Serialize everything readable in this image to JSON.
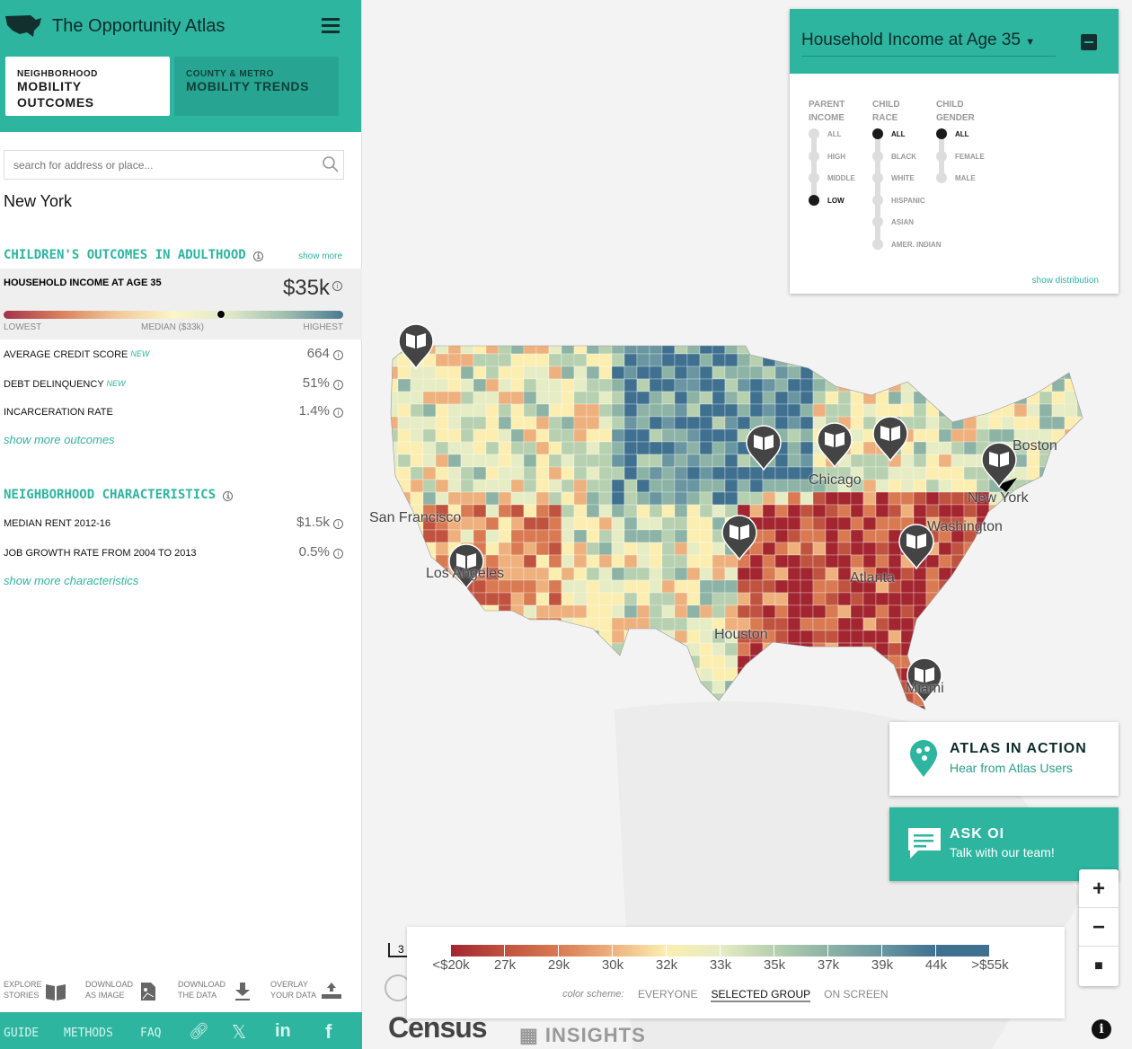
{
  "app": {
    "title": "The Opportunity Atlas"
  },
  "tabs": [
    {
      "small": "NEIGHBORHOOD",
      "label": "MOBILITY OUTCOMES"
    },
    {
      "small": "COUNTY & METRO",
      "label": "MOBILITY TRENDS"
    }
  ],
  "search": {
    "placeholder": "search for address or place..."
  },
  "location": "New York",
  "outcomes": {
    "heading": "CHILDREN'S OUTCOMES IN ADULTHOOD",
    "show_more": "show more",
    "highlight": {
      "label": "HOUSEHOLD INCOME AT AGE 35",
      "value": "$35k",
      "low": "LOWEST",
      "median": "MEDIAN ($33k)",
      "high": "HIGHEST",
      "percentile": 0.64
    },
    "rows": [
      {
        "label": "AVERAGE CREDIT SCORE",
        "badge": "NEW",
        "value": "664"
      },
      {
        "label": "DEBT DELINQUENCY",
        "badge": "NEW",
        "value": "51%"
      },
      {
        "label": "INCARCERATION RATE",
        "value": "1.4%"
      }
    ],
    "more_link": "show more outcomes"
  },
  "characteristics": {
    "heading": "NEIGHBORHOOD CHARACTERISTICS",
    "rows": [
      {
        "label": "MEDIAN RENT 2012-16",
        "value": "$1.5k"
      },
      {
        "label": "JOB GROWTH RATE FROM 2004 TO 2013",
        "value": "0.5%"
      }
    ],
    "more_link": "show more characteristics"
  },
  "tools": [
    {
      "l1": "EXPLORE",
      "l2": "STORIES",
      "icon": "book-icon"
    },
    {
      "l1": "DOWNLOAD",
      "l2": "AS IMAGE",
      "icon": "image-icon"
    },
    {
      "l1": "DOWNLOAD",
      "l2": "THE DATA",
      "icon": "download-icon"
    },
    {
      "l1": "OVERLAY",
      "l2": "YOUR DATA",
      "icon": "upload-icon"
    }
  ],
  "footer": {
    "guide": "GUIDE",
    "methods": "METHODS",
    "faq": "FAQ"
  },
  "panel": {
    "title": "Household Income at Age 35",
    "show_distribution": "show distribution",
    "groups": [
      {
        "h1": "PARENT",
        "h2": "INCOME",
        "options": [
          "ALL",
          "HIGH",
          "MIDDLE",
          "LOW"
        ],
        "selected": "LOW"
      },
      {
        "h1": "CHILD",
        "h2": "RACE",
        "options": [
          "ALL",
          "BLACK",
          "WHITE",
          "HISPANIC",
          "ASIAN",
          "AMER. INDIAN"
        ],
        "selected": "ALL"
      },
      {
        "h1": "CHILD",
        "h2": "GENDER",
        "options": [
          "ALL",
          "FEMALE",
          "MALE"
        ],
        "selected": "ALL"
      }
    ]
  },
  "cities": [
    "San Francisco",
    "Los Angeles",
    "Chicago",
    "Boston",
    "New York",
    "Washington",
    "Atlanta",
    "Houston",
    "Miami"
  ],
  "cards": {
    "action_title": "ATLAS IN ACTION",
    "action_sub": "Hear from Atlas Users",
    "ask_title": "ASK OI",
    "ask_sub": "Talk with our team!"
  },
  "legend": {
    "ticks": [
      "<$20k",
      "27k",
      "29k",
      "30k",
      "32k",
      "33k",
      "35k",
      "37k",
      "39k",
      "44k",
      ">$55k"
    ],
    "colors": [
      "#a3252f",
      "#c0533f",
      "#d97a52",
      "#eeb17e",
      "#fbeeb0",
      "#e6ecc4",
      "#b6d0b0",
      "#8cb3a5",
      "#6996a0",
      "#3f7090"
    ],
    "scheme_label": "color scheme:",
    "schemes": [
      "EVERYONE",
      "SELECTED GROUP",
      "ON SCREEN"
    ],
    "selected_scheme": "SELECTED GROUP"
  },
  "scale_text": "3",
  "logos": {
    "census": "Census",
    "oi": "OPPORTUNITY INSIGHTS"
  },
  "colors": {
    "brand": "#2db5a0"
  }
}
